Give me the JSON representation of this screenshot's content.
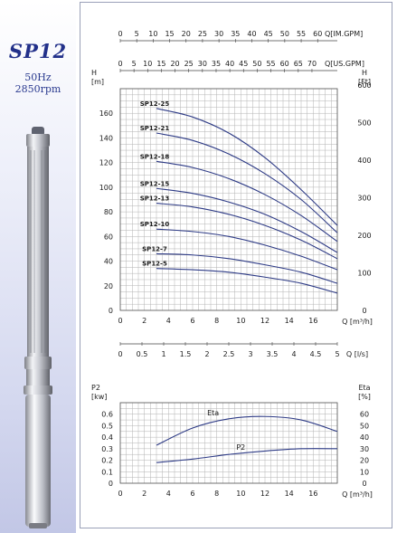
{
  "sidebar": {
    "title": "SP12",
    "frequency": "50Hz",
    "speed": "2850rpm"
  },
  "colors": {
    "curve": "#2e3b86",
    "grid": "#b3b3b3",
    "title": "#22308a"
  },
  "chart_data": [
    {
      "type": "line",
      "name": "head-curves",
      "x_axis": {
        "label": "Q [m³/h]",
        "range": [
          0,
          18
        ],
        "ticks": [
          "0",
          "2",
          "4",
          "6",
          "8",
          "10",
          "12",
          "14",
          "16"
        ]
      },
      "y_axis_left": {
        "label_top": "H",
        "label_unit": "[m]",
        "range": [
          0,
          180
        ],
        "ticks": [
          "0",
          "20",
          "40",
          "60",
          "80",
          "100",
          "120",
          "140",
          "160"
        ]
      },
      "y_axis_right": {
        "label_top": "H",
        "label_unit": "[Ft]",
        "range": [
          0,
          600
        ],
        "ticks": [
          "0",
          "100",
          "200",
          "300",
          "400",
          "500",
          "600"
        ]
      },
      "top_axis_1": {
        "label": "Q[IM.GPM]",
        "values": [
          "0",
          "5",
          "10",
          "15",
          "20",
          "25",
          "30",
          "35",
          "40",
          "45",
          "50",
          "55",
          "60"
        ]
      },
      "top_axis_2": {
        "label": "Q[US.GPM]",
        "values": [
          "0",
          "5",
          "10",
          "15",
          "20",
          "25",
          "30",
          "35",
          "40",
          "45",
          "50",
          "55",
          "60",
          "65",
          "70"
        ]
      },
      "bottom_axis_2": {
        "label": "Q [l/s]",
        "values": [
          "0",
          "0.5",
          "1",
          "1.5",
          "2",
          "2.5",
          "3",
          "3.5",
          "4",
          "4.5",
          "5"
        ]
      },
      "series": [
        {
          "name": "SP12-25",
          "x": [
            3,
            6,
            9,
            12,
            15,
            18
          ],
          "y": [
            164,
            157,
            144,
            124,
            98,
            69
          ]
        },
        {
          "name": "SP12-21",
          "x": [
            3,
            6,
            9,
            12,
            15,
            18
          ],
          "y": [
            144,
            138,
            127,
            111,
            90,
            63
          ]
        },
        {
          "name": "SP12-18",
          "x": [
            3,
            6,
            9,
            12,
            15,
            18
          ],
          "y": [
            121,
            116,
            107,
            94,
            77,
            56
          ]
        },
        {
          "name": "SP12-15",
          "x": [
            3,
            6,
            9,
            12,
            15,
            18
          ],
          "y": [
            99,
            95,
            88,
            78,
            64,
            47
          ]
        },
        {
          "name": "SP12-13",
          "x": [
            3,
            6,
            9,
            12,
            15,
            18
          ],
          "y": [
            87,
            84,
            78,
            69,
            57,
            42
          ]
        },
        {
          "name": "SP12-10",
          "x": [
            3,
            6,
            9,
            12,
            15,
            18
          ],
          "y": [
            66,
            64,
            60,
            53,
            44,
            33
          ]
        },
        {
          "name": "SP12-7",
          "x": [
            3,
            6,
            9,
            12,
            15,
            18
          ],
          "y": [
            46,
            45,
            42,
            37,
            31,
            22
          ]
        },
        {
          "name": "SP12-5",
          "x": [
            3,
            6,
            9,
            12,
            15,
            18
          ],
          "y": [
            34,
            33,
            31,
            27,
            22,
            14
          ]
        }
      ],
      "grid": true
    },
    {
      "type": "line",
      "name": "power-efficiency",
      "x_axis": {
        "label": "Q [m³/h]",
        "range": [
          0,
          18
        ],
        "ticks": [
          "0",
          "2",
          "4",
          "6",
          "8",
          "10",
          "12",
          "14",
          "16"
        ]
      },
      "y_axis_left": {
        "label_top": "P2",
        "label_unit": "[kw]",
        "range": [
          0,
          0.7
        ],
        "ticks": [
          "0",
          "0.1",
          "0.2",
          "0.3",
          "0.4",
          "0.5",
          "0.6"
        ]
      },
      "y_axis_right": {
        "label_top": "Eta",
        "label_unit": "[%]",
        "range": [
          0,
          70
        ],
        "ticks": [
          "0",
          "10",
          "20",
          "30",
          "40",
          "50",
          "60"
        ]
      },
      "series": [
        {
          "name": "Eta",
          "axis": "right",
          "x": [
            3,
            6,
            9,
            12,
            15,
            18
          ],
          "y": [
            33,
            48,
            56,
            58,
            55,
            45
          ]
        },
        {
          "name": "P2",
          "axis": "left",
          "x": [
            3,
            6,
            9,
            12,
            15,
            18
          ],
          "y": [
            0.18,
            0.21,
            0.25,
            0.28,
            0.3,
            0.3
          ]
        }
      ],
      "grid": true
    }
  ]
}
